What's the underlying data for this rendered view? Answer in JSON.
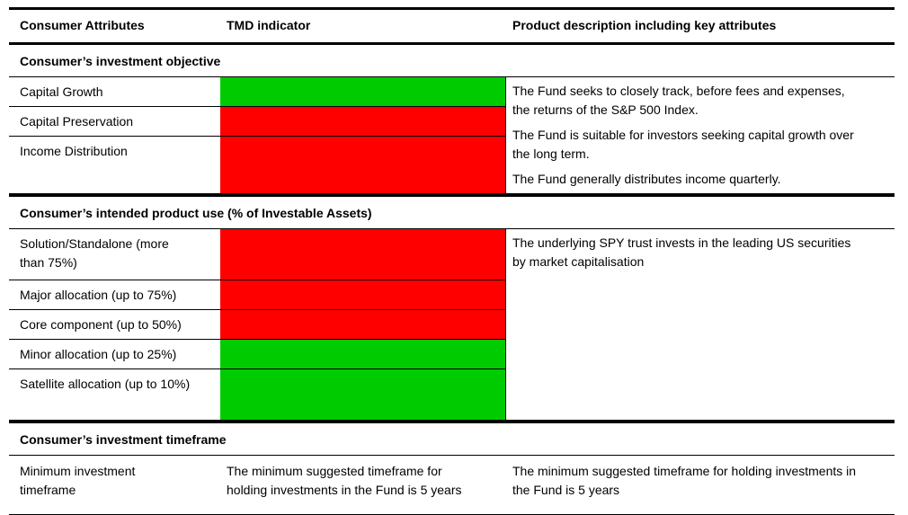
{
  "header": {
    "col1": "Consumer Attributes",
    "col2": "TMD indicator",
    "col3": "Product description including key attributes"
  },
  "indicator_colors": {
    "green": "#00cb00",
    "red": "#ff0000"
  },
  "sections": [
    {
      "title": "Consumer’s investment objective",
      "rows": [
        {
          "label": "Capital Growth",
          "indicator": "green",
          "color": "#00cb00"
        },
        {
          "label": "Capital Preservation",
          "indicator": "red",
          "color": "#ff0000"
        },
        {
          "label": "Income Distribution",
          "indicator": "red",
          "color": "#ff0000"
        }
      ],
      "description": [
        "The Fund seeks to closely track, before fees and expenses, the returns of the S&P 500 Index.",
        "The Fund is suitable for investors seeking capital growth over the long term.",
        "The Fund generally distributes income quarterly."
      ]
    },
    {
      "title": "Consumer’s intended product use (% of Investable Assets)",
      "rows": [
        {
          "label": "Solution/Standalone (more than 75%)",
          "indicator": "red",
          "color": "#ff0000"
        },
        {
          "label": "Major allocation (up to 75%)",
          "indicator": "red",
          "color": "#ff0000"
        },
        {
          "label": "Core component (up to 50%)",
          "indicator": "red",
          "color": "#ff0000"
        },
        {
          "label": "Minor allocation (up to 25%)",
          "indicator": "green",
          "color": "#00cb00"
        },
        {
          "label": "Satellite allocation (up to 10%)",
          "indicator": "green",
          "color": "#00cb00"
        }
      ],
      "description": [
        "The underlying SPY trust invests in the leading US securities by market capitalisation"
      ]
    },
    {
      "title": "Consumer’s investment timeframe",
      "rows": [
        {
          "label": "Minimum investment timeframe",
          "indicator_text": "The minimum suggested timeframe for holding investments in the Fund is 5 years"
        }
      ],
      "description": [
        "The minimum suggested timeframe for holding investments in the Fund is 5 years"
      ]
    }
  ]
}
